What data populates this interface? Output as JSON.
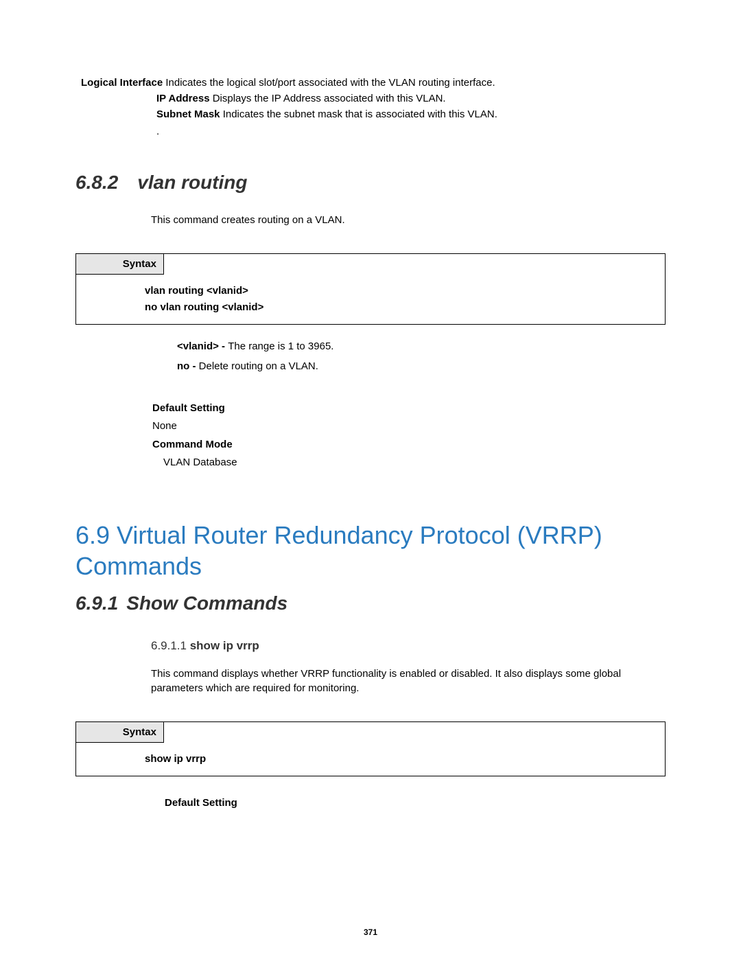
{
  "definitions": {
    "row1_bold": "Logical Interface",
    "row1_text": " Indicates the logical slot/port associated with the VLAN routing interface.",
    "row2_bold": "IP Address",
    "row2_text": " Displays the IP Address associated with this VLAN.",
    "row3_bold": "Subnet Mask",
    "row3_text": " Indicates the subnet mask that is associated with this VLAN.",
    "dot": "."
  },
  "section_682": {
    "number": "6.8.2",
    "title": "vlan routing",
    "description": "This command creates routing on a VLAN.",
    "syntax_label": "Syntax",
    "syntax_line1": "vlan routing <vlanid>",
    "syntax_line2": "no vlan routing <vlanid>",
    "param1_bold": "<vlanid> - ",
    "param1_text": "The range is 1 to 3965.",
    "param2_bold": "no - ",
    "param2_text": "Delete routing on a VLAN.",
    "default_label": "Default Setting",
    "default_value": "None",
    "mode_label": "Command Mode",
    "mode_value": "VLAN Database"
  },
  "section_69": {
    "title": "6.9 Virtual Router Redundancy Protocol (VRRP) Commands",
    "title_color": "#2a7bbf",
    "title_fontsize": 36
  },
  "section_691": {
    "number": "6.9.1",
    "title": "Show Commands"
  },
  "section_6911": {
    "number": "6.9.1.1 ",
    "title": "show ip vrrp",
    "description": "This command displays whether VRRP functionality is enabled or disabled. It also displays some global parameters which are required for monitoring.",
    "syntax_label": "Syntax",
    "syntax_line1": "show ip vrrp",
    "default_label": "Default Setting"
  },
  "page_number": "371",
  "style": {
    "body_fontsize": 15,
    "h1_color": "#2a7bbf",
    "h1_fontsize": 36,
    "h2_fontsize": 28,
    "h3_fontsize": 17,
    "text_color": "#000000",
    "heading_color": "#333333",
    "syntax_header_bg": "#e6e6e6",
    "border_color": "#000000",
    "background_color": "#ffffff"
  }
}
